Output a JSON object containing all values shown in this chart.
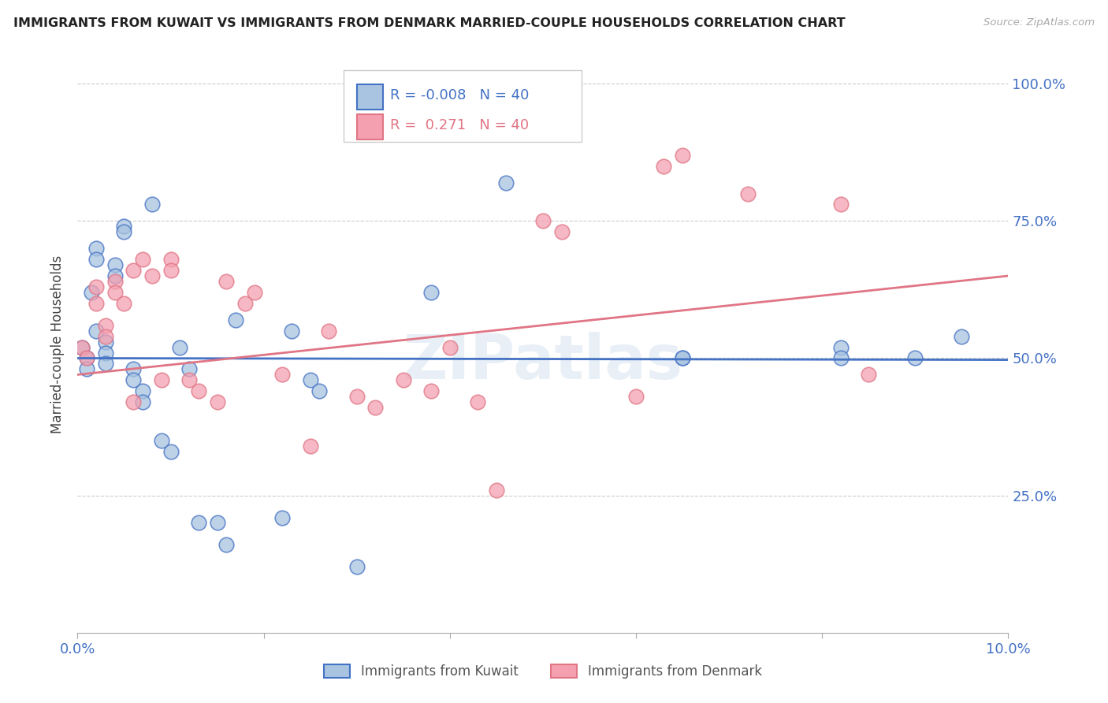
{
  "title": "IMMIGRANTS FROM KUWAIT VS IMMIGRANTS FROM DENMARK MARRIED-COUPLE HOUSEHOLDS CORRELATION CHART",
  "source": "Source: ZipAtlas.com",
  "ylabel": "Married-couple Households",
  "xlim": [
    0.0,
    0.1
  ],
  "ylim": [
    0.0,
    1.05
  ],
  "yticks": [
    0.25,
    0.5,
    0.75,
    1.0
  ],
  "ytick_labels": [
    "25.0%",
    "50.0%",
    "75.0%",
    "100.0%"
  ],
  "xticks": [
    0.0,
    0.02,
    0.04,
    0.06,
    0.08,
    0.1
  ],
  "xtick_labels": [
    "0.0%",
    "",
    "",
    "",
    "",
    "10.0%"
  ],
  "watermark": "ZIPatlas",
  "R_kuwait": -0.008,
  "N_kuwait": 40,
  "R_denmark": 0.271,
  "N_denmark": 40,
  "color_kuwait": "#a8c4e0",
  "color_denmark": "#f4a0b0",
  "line_color_kuwait": "#4472c4",
  "line_color_denmark": "#e07585",
  "tick_color": "#4472c4",
  "grid_color": "#cccccc",
  "title_color": "#222222",
  "kuwait_line_y0": 0.5,
  "kuwait_line_y1": 0.497,
  "denmark_line_y0": 0.47,
  "denmark_line_y1": 0.65,
  "kuwait_x": [
    0.0005,
    0.001,
    0.001,
    0.0015,
    0.002,
    0.002,
    0.002,
    0.003,
    0.003,
    0.003,
    0.004,
    0.004,
    0.005,
    0.005,
    0.006,
    0.006,
    0.007,
    0.007,
    0.008,
    0.009,
    0.01,
    0.011,
    0.012,
    0.013,
    0.015,
    0.016,
    0.017,
    0.022,
    0.023,
    0.025,
    0.026,
    0.03,
    0.038,
    0.046,
    0.065,
    0.065,
    0.082,
    0.082,
    0.09,
    0.095
  ],
  "kuwait_y": [
    0.52,
    0.5,
    0.48,
    0.62,
    0.7,
    0.68,
    0.55,
    0.53,
    0.51,
    0.49,
    0.67,
    0.65,
    0.74,
    0.73,
    0.48,
    0.46,
    0.44,
    0.42,
    0.78,
    0.35,
    0.33,
    0.52,
    0.48,
    0.2,
    0.2,
    0.16,
    0.57,
    0.21,
    0.55,
    0.46,
    0.44,
    0.12,
    0.62,
    0.82,
    0.5,
    0.5,
    0.52,
    0.5,
    0.5,
    0.54
  ],
  "denmark_x": [
    0.0005,
    0.001,
    0.002,
    0.002,
    0.003,
    0.003,
    0.004,
    0.004,
    0.005,
    0.006,
    0.006,
    0.007,
    0.008,
    0.009,
    0.01,
    0.01,
    0.012,
    0.013,
    0.015,
    0.016,
    0.018,
    0.019,
    0.022,
    0.025,
    0.027,
    0.03,
    0.032,
    0.035,
    0.038,
    0.04,
    0.043,
    0.045,
    0.05,
    0.052,
    0.06,
    0.063,
    0.065,
    0.072,
    0.082,
    0.085
  ],
  "denmark_y": [
    0.52,
    0.5,
    0.63,
    0.6,
    0.56,
    0.54,
    0.64,
    0.62,
    0.6,
    0.66,
    0.42,
    0.68,
    0.65,
    0.46,
    0.68,
    0.66,
    0.46,
    0.44,
    0.42,
    0.64,
    0.6,
    0.62,
    0.47,
    0.34,
    0.55,
    0.43,
    0.41,
    0.46,
    0.44,
    0.52,
    0.42,
    0.26,
    0.75,
    0.73,
    0.43,
    0.85,
    0.87,
    0.8,
    0.78,
    0.47
  ]
}
